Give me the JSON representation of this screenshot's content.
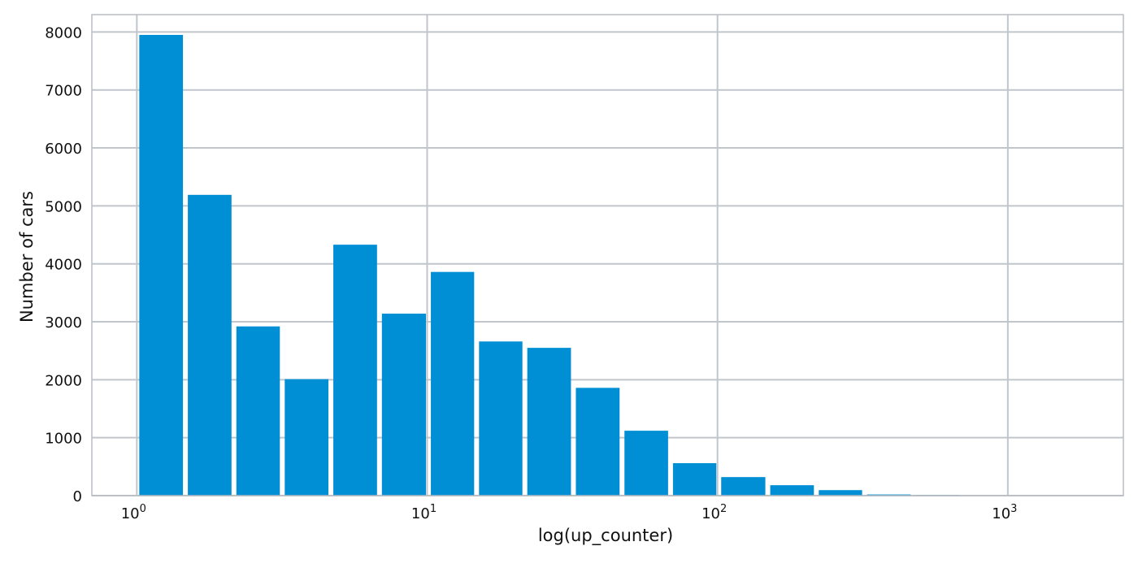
{
  "colors": {
    "bar": "#008fd5",
    "grid": "#c0c6cc",
    "frame": "#b9bec4",
    "text": "#111111"
  },
  "chart_data": {
    "type": "bar",
    "title": "",
    "xlabel": "log(up_counter)",
    "ylabel": "Number of cars",
    "x_scale": "log",
    "xlim": [
      0.7,
      2500
    ],
    "ylim": [
      0,
      8300
    ],
    "grid": true,
    "x_ticks": [
      {
        "value": 1,
        "base": "10",
        "exp": "0"
      },
      {
        "value": 10,
        "base": "10",
        "exp": "1"
      },
      {
        "value": 100,
        "base": "10",
        "exp": "2"
      },
      {
        "value": 1000,
        "base": "10",
        "exp": "3"
      }
    ],
    "y_ticks": [
      0,
      1000,
      2000,
      3000,
      4000,
      5000,
      6000,
      7000,
      8000
    ],
    "bars": [
      {
        "x0": 1.0,
        "x1": 1.47,
        "value": 7950
      },
      {
        "x0": 1.47,
        "x1": 2.16,
        "value": 5190
      },
      {
        "x0": 2.16,
        "x1": 3.17,
        "value": 2920
      },
      {
        "x0": 3.17,
        "x1": 4.66,
        "value": 2010
      },
      {
        "x0": 4.66,
        "x1": 6.85,
        "value": 4330
      },
      {
        "x0": 6.85,
        "x1": 10.1,
        "value": 3140
      },
      {
        "x0": 10.1,
        "x1": 14.8,
        "value": 3860
      },
      {
        "x0": 14.8,
        "x1": 21.7,
        "value": 2660
      },
      {
        "x0": 21.7,
        "x1": 31.9,
        "value": 2550
      },
      {
        "x0": 31.9,
        "x1": 46.9,
        "value": 1860
      },
      {
        "x0": 46.9,
        "x1": 68.9,
        "value": 1120
      },
      {
        "x0": 68.9,
        "x1": 101,
        "value": 560
      },
      {
        "x0": 101,
        "x1": 149,
        "value": 320
      },
      {
        "x0": 149,
        "x1": 219,
        "value": 180
      },
      {
        "x0": 219,
        "x1": 321,
        "value": 95
      },
      {
        "x0": 321,
        "x1": 472,
        "value": 20
      },
      {
        "x0": 472,
        "x1": 694,
        "value": 10
      },
      {
        "x0": 694,
        "x1": 1020,
        "value": 5
      },
      {
        "x0": 1020,
        "x1": 1500,
        "value": 3
      },
      {
        "x0": 1500,
        "x1": 2200,
        "value": 2
      }
    ]
  }
}
